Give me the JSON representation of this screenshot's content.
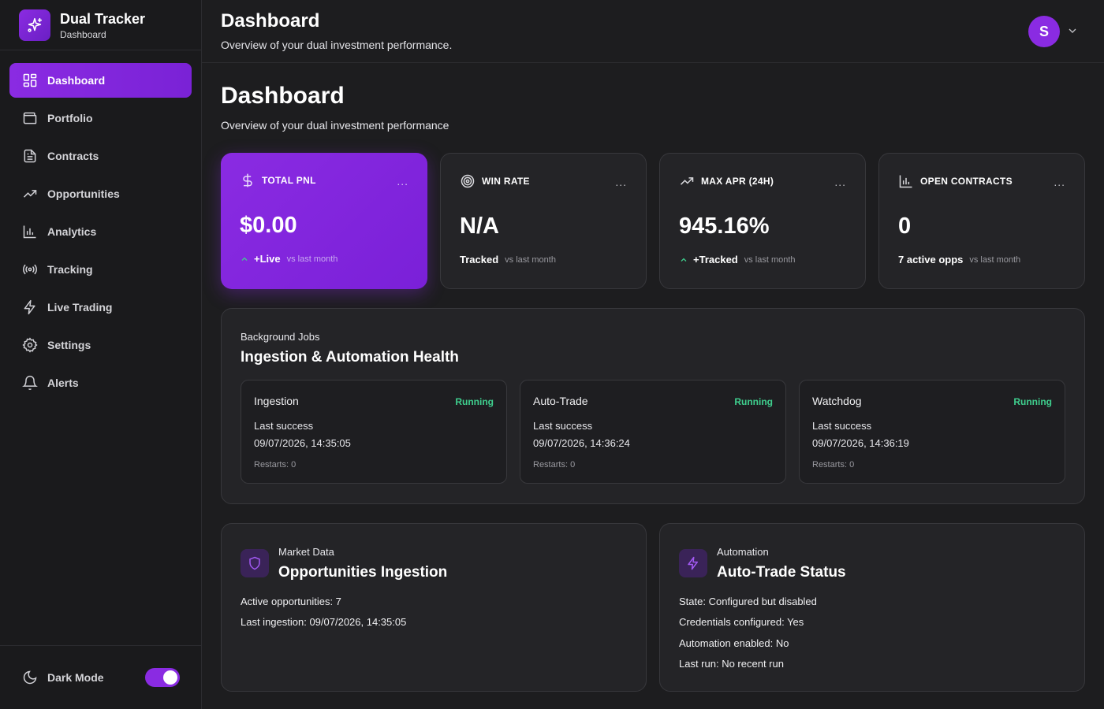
{
  "brand": {
    "title": "Dual Tracker",
    "subtitle": "Dashboard"
  },
  "sidebar": {
    "items": [
      {
        "label": "Dashboard",
        "icon": "grid-icon",
        "active": true
      },
      {
        "label": "Portfolio",
        "icon": "wallet-icon"
      },
      {
        "label": "Contracts",
        "icon": "document-icon"
      },
      {
        "label": "Opportunities",
        "icon": "trending-up-icon"
      },
      {
        "label": "Analytics",
        "icon": "bar-chart-icon"
      },
      {
        "label": "Tracking",
        "icon": "radio-icon"
      },
      {
        "label": "Live Trading",
        "icon": "lightning-icon"
      },
      {
        "label": "Settings",
        "icon": "gear-icon"
      },
      {
        "label": "Alerts",
        "icon": "bell-icon"
      }
    ],
    "dark_mode_label": "Dark Mode",
    "dark_mode_on": true
  },
  "header": {
    "title": "Dashboard",
    "subtitle": "Overview of your dual investment performance.",
    "avatar_initial": "S"
  },
  "main": {
    "title": "Dashboard",
    "subtitle": "Overview of your dual investment performance",
    "stats": [
      {
        "label": "TOTAL PNL",
        "value": "$0.00",
        "trend": "+Live",
        "vs": "vs last month",
        "icon": "dollar-icon"
      },
      {
        "label": "WIN RATE",
        "value": "N/A",
        "trend": "Tracked",
        "vs": "vs last month",
        "icon": "target-icon"
      },
      {
        "label": "MAX APR (24H)",
        "value": "945.16%",
        "trend": "+Tracked",
        "vs": "vs last month",
        "icon": "trending-up-icon"
      },
      {
        "label": "OPEN CONTRACTS",
        "value": "0",
        "trend": "7 active opps",
        "vs": "vs last month",
        "icon": "bar-chart-icon"
      }
    ],
    "stat_more": "...",
    "jobs": {
      "eyebrow": "Background Jobs",
      "title": "Ingestion & Automation Health",
      "items": [
        {
          "name": "Ingestion",
          "status": "Running",
          "last_label": "Last success",
          "last_value": "09/07/2026, 14:35:05",
          "restarts": "Restarts: 0"
        },
        {
          "name": "Auto-Trade",
          "status": "Running",
          "last_label": "Last success",
          "last_value": "09/07/2026, 14:36:24",
          "restarts": "Restarts: 0"
        },
        {
          "name": "Watchdog",
          "status": "Running",
          "last_label": "Last success",
          "last_value": "09/07/2026, 14:36:19",
          "restarts": "Restarts: 0"
        }
      ]
    },
    "market": {
      "eyebrow": "Market Data",
      "title": "Opportunities Ingestion",
      "lines": [
        "Active opportunities: 7",
        "Last ingestion: 09/07/2026, 14:35:05"
      ]
    },
    "automation": {
      "eyebrow": "Automation",
      "title": "Auto-Trade Status",
      "lines": [
        "State: Configured but disabled",
        "Credentials configured: Yes",
        "Automation enabled: No",
        "Last run: No recent run"
      ]
    }
  },
  "colors": {
    "accent": "#8a2be2",
    "success": "#3fcf8e",
    "background": "#1d1d1f"
  }
}
